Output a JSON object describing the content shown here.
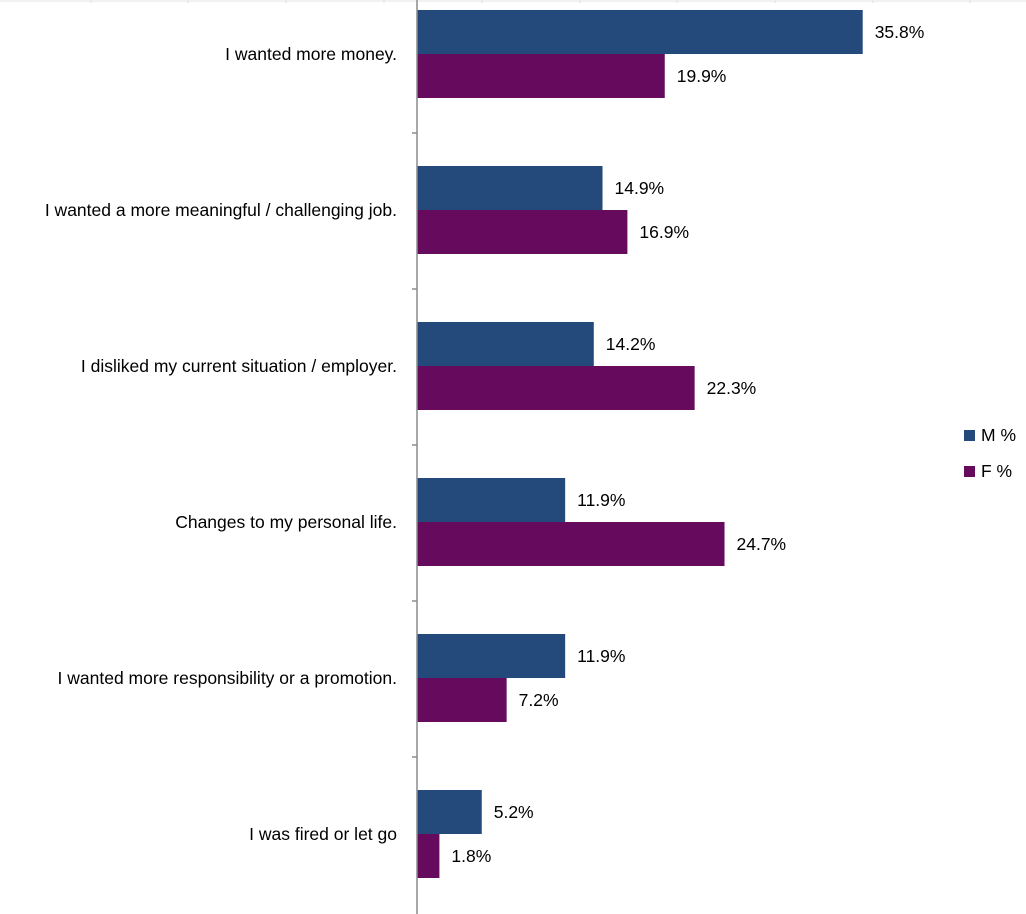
{
  "chart_data": {
    "type": "bar",
    "orientation": "horizontal",
    "categories": [
      "I wanted more money.",
      "I wanted a more meaningful / challenging job.",
      "I disliked my current situation / employer.",
      "Changes to my personal life.",
      "I wanted more responsibility or a promotion.",
      "I was fired or let go"
    ],
    "series": [
      {
        "name": "M %",
        "color": "#244A7B",
        "values": [
          35.8,
          14.9,
          14.2,
          11.9,
          11.9,
          5.2
        ],
        "labels": [
          "35.8%",
          "14.9%",
          "14.2%",
          "11.9%",
          "11.9%",
          "5.2%"
        ]
      },
      {
        "name": "F %",
        "color": "#660A5E",
        "values": [
          19.9,
          16.9,
          22.3,
          24.7,
          7.2,
          1.8
        ],
        "labels": [
          "19.9%",
          "16.9%",
          "22.3%",
          "24.7%",
          "7.2%",
          "1.8%"
        ]
      }
    ],
    "xlim": [
      0,
      48
    ],
    "legend_position": "right",
    "grid": true,
    "title": "",
    "xlabel": "",
    "ylabel": ""
  }
}
